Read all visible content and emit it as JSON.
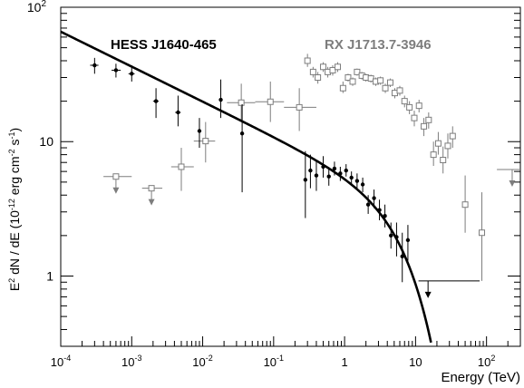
{
  "chart_data": {
    "type": "scatter",
    "xscale": "log",
    "yscale": "log",
    "xlim": [
      0.0001,
      300
    ],
    "ylim": [
      0.3,
      100
    ],
    "xlabel": "Energy (TeV)",
    "ylabel": {
      "base": "E",
      "base_sup": "2",
      "rest": " dN / dE (10",
      "exp_sup": "-12",
      "unit_a": " erg cm",
      "unit_a_sup": "-2",
      "unit_b": " s",
      "unit_b_sup": "-1",
      "close": ")"
    },
    "x_tick_labels": [
      {
        "value": 0.0001,
        "base": "10",
        "exp": "-4"
      },
      {
        "value": 0.001,
        "base": "10",
        "exp": "-3"
      },
      {
        "value": 0.01,
        "base": "10",
        "exp": "-2"
      },
      {
        "value": 0.1,
        "base": "10",
        "exp": "-1"
      },
      {
        "value": 1,
        "base": "1",
        "exp": ""
      },
      {
        "value": 10,
        "base": "10",
        "exp": ""
      },
      {
        "value": 100,
        "base": "10",
        "exp": "2"
      }
    ],
    "y_tick_labels": [
      {
        "value": 1,
        "base": "1",
        "exp": ""
      },
      {
        "value": 10,
        "base": "10",
        "exp": ""
      },
      {
        "value": 100,
        "base": "10",
        "exp": "2"
      }
    ],
    "colors": {
      "hess": "#000000",
      "rx": "#7d7d7d"
    },
    "series": [
      {
        "name": "HESS J1640-465",
        "color": "#000000",
        "marker": "dot",
        "points": [
          {
            "x": 0.0003,
            "y": 37,
            "xerr": [
              0.00026,
              0.00034
            ],
            "yerr": [
              32,
              42
            ]
          },
          {
            "x": 0.0006,
            "y": 34,
            "xerr": [
              0.00052,
              0.0007
            ],
            "yerr": [
              30,
              38
            ]
          },
          {
            "x": 0.001,
            "y": 32,
            "xerr": [
              0.0009,
              0.0011
            ],
            "yerr": [
              28,
              37
            ]
          },
          {
            "x": 0.0022,
            "y": 20,
            "xerr": [
              0.002,
              0.0024
            ],
            "yerr": [
              15,
              25
            ]
          },
          {
            "x": 0.0045,
            "y": 16.5,
            "xerr": [
              0.0041,
              0.0049
            ],
            "yerr": [
              13,
              22
            ]
          },
          {
            "x": 0.009,
            "y": 12,
            "xerr": [
              0.0085,
              0.0095
            ],
            "yerr": [
              9,
              15
            ]
          },
          {
            "x": 0.018,
            "y": 20.5,
            "xerr": [
              0.017,
              0.019
            ],
            "yerr": [
              15,
              29
            ]
          },
          {
            "x": 0.036,
            "y": 11.5,
            "xerr": [
              0.034,
              0.038
            ],
            "yerr": [
              4.2,
              19
            ]
          },
          {
            "x": 0.28,
            "y": 5.2,
            "yerr": [
              2.7,
              8.5
            ]
          },
          {
            "x": 0.33,
            "y": 6.1,
            "yerr": [
              4.5,
              8
            ]
          },
          {
            "x": 0.4,
            "y": 5.6,
            "yerr": [
              4.3,
              7.2
            ]
          },
          {
            "x": 0.5,
            "y": 6.5,
            "yerr": [
              5.4,
              7.8
            ]
          },
          {
            "x": 0.6,
            "y": 5.5,
            "yerr": [
              4.7,
              6.4
            ]
          },
          {
            "x": 0.72,
            "y": 6.3,
            "yerr": [
              5.6,
              7.1
            ]
          },
          {
            "x": 0.87,
            "y": 5.8,
            "yerr": [
              5.1,
              6.5
            ]
          },
          {
            "x": 1.05,
            "y": 6.1,
            "yerr": [
              5.5,
              6.8
            ]
          },
          {
            "x": 1.25,
            "y": 5.4,
            "yerr": [
              4.8,
              6
            ]
          },
          {
            "x": 1.5,
            "y": 5.1,
            "yerr": [
              4.5,
              5.8
            ]
          },
          {
            "x": 1.8,
            "y": 4.8,
            "yerr": [
              4.2,
              5.4
            ]
          },
          {
            "x": 2.15,
            "y": 3.4,
            "yerr": [
              2.9,
              4
            ]
          },
          {
            "x": 2.6,
            "y": 3.8,
            "yerr": [
              3.2,
              4.4
            ]
          },
          {
            "x": 3.1,
            "y": 3.1,
            "yerr": [
              2.6,
              3.7
            ]
          },
          {
            "x": 3.7,
            "y": 2.8,
            "yerr": [
              2.3,
              3.4
            ]
          },
          {
            "x": 4.5,
            "y": 2.0,
            "yerr": [
              1.6,
              2.5
            ]
          },
          {
            "x": 5.4,
            "y": 1.95,
            "yerr": [
              1.4,
              2.5
            ]
          },
          {
            "x": 6.5,
            "y": 1.4,
            "yerr": [
              0.9,
              2.1
            ]
          },
          {
            "x": 7.8,
            "y": 1.85,
            "yerr": [
              1.3,
              2.4
            ]
          }
        ],
        "upper_limits": [
          {
            "x": 15,
            "y": 0.92,
            "xerr": [
              11,
              80
            ]
          }
        ]
      },
      {
        "name": "RX J1713.7-3946",
        "color": "#7d7d7d",
        "marker": "open-square",
        "points": [
          {
            "x": 0.005,
            "y": 6.5,
            "xerr": [
              0.0036,
              0.0075
            ],
            "yerr": [
              4.3,
              9
            ]
          },
          {
            "x": 0.011,
            "y": 10.1,
            "xerr": [
              0.0075,
              0.015
            ],
            "yerr": [
              7,
              14
            ]
          },
          {
            "x": 0.035,
            "y": 19.5,
            "xerr": [
              0.022,
              0.055
            ],
            "yerr": [
              14,
              27
            ]
          },
          {
            "x": 0.09,
            "y": 19.8,
            "xerr": [
              0.055,
              0.14
            ],
            "yerr": [
              14,
              28
            ]
          },
          {
            "x": 0.23,
            "y": 18,
            "xerr": [
              0.14,
              0.4
            ],
            "yerr": [
              12,
              25
            ]
          },
          {
            "x": 0.3,
            "y": 40,
            "yerr": [
              36,
              45
            ]
          },
          {
            "x": 0.36,
            "y": 33,
            "yerr": [
              30,
              36
            ]
          },
          {
            "x": 0.42,
            "y": 30,
            "yerr": [
              27,
              33
            ]
          },
          {
            "x": 0.5,
            "y": 36,
            "yerr": [
              33,
              39
            ]
          },
          {
            "x": 0.58,
            "y": 33,
            "yerr": [
              30,
              36
            ]
          },
          {
            "x": 0.68,
            "y": 34,
            "yerr": [
              31,
              37
            ]
          },
          {
            "x": 0.8,
            "y": 36,
            "yerr": [
              33,
              39
            ]
          },
          {
            "x": 0.95,
            "y": 25,
            "yerr": [
              23,
              28
            ]
          },
          {
            "x": 1.12,
            "y": 30,
            "yerr": [
              28,
              32
            ]
          },
          {
            "x": 1.3,
            "y": 28,
            "yerr": [
              26,
              30
            ]
          },
          {
            "x": 1.5,
            "y": 33,
            "yerr": [
              31,
              35
            ]
          },
          {
            "x": 1.75,
            "y": 31,
            "yerr": [
              29,
              33
            ]
          },
          {
            "x": 2.0,
            "y": 30,
            "yerr": [
              28,
              32
            ]
          },
          {
            "x": 2.35,
            "y": 29.5,
            "yerr": [
              27.5,
              31.5
            ]
          },
          {
            "x": 2.75,
            "y": 28,
            "yerr": [
              26,
              30
            ]
          },
          {
            "x": 3.2,
            "y": 28.5,
            "yerr": [
              26.5,
              30.5
            ]
          },
          {
            "x": 3.75,
            "y": 25,
            "yerr": [
              23,
              27
            ]
          },
          {
            "x": 4.4,
            "y": 27.5,
            "yerr": [
              25.5,
              29.5
            ]
          },
          {
            "x": 5.1,
            "y": 23,
            "yerr": [
              21,
              25
            ]
          },
          {
            "x": 6.0,
            "y": 24,
            "yerr": [
              22,
              26
            ]
          },
          {
            "x": 7.0,
            "y": 20,
            "yerr": [
              18,
              22
            ]
          },
          {
            "x": 8.2,
            "y": 18,
            "yerr": [
              16,
              20
            ]
          },
          {
            "x": 9.6,
            "y": 15,
            "yerr": [
              13,
              17
            ]
          },
          {
            "x": 11.2,
            "y": 18.5,
            "yerr": [
              16.5,
              20.5
            ]
          },
          {
            "x": 13.1,
            "y": 13,
            "yerr": [
              11,
              15
            ]
          },
          {
            "x": 15.3,
            "y": 14.5,
            "yerr": [
              12.5,
              16.5
            ]
          },
          {
            "x": 17.9,
            "y": 8,
            "yerr": [
              6.6,
              10
            ]
          },
          {
            "x": 20.9,
            "y": 9.7,
            "yerr": [
              8,
              11.8
            ]
          },
          {
            "x": 24.4,
            "y": 7.3,
            "yerr": [
              5.8,
              9.2
            ]
          },
          {
            "x": 28.5,
            "y": 9.3,
            "yerr": [
              7.5,
              11.5
            ]
          },
          {
            "x": 33.3,
            "y": 11,
            "yerr": [
              9,
              13
            ]
          },
          {
            "x": 50,
            "y": 3.4,
            "yerr": [
              2.1,
              5.6
            ]
          },
          {
            "x": 86,
            "y": 2.1,
            "yerr": [
              0.92,
              4.2
            ]
          }
        ],
        "upper_limits": [
          {
            "x": 0.0006,
            "y": 5.5,
            "xerr": [
              0.0004,
              0.001
            ]
          },
          {
            "x": 0.0019,
            "y": 4.5,
            "xerr": [
              0.0014,
              0.0027
            ]
          },
          {
            "x": 230,
            "y": 6.2,
            "xerr": [
              140,
              300
            ]
          }
        ]
      }
    ],
    "model_curve": {
      "form": "power law with exponential cutoff",
      "normalization": 6.0,
      "index": 2.26,
      "cutoff_tev": 7.5,
      "x_range": [
        0.0001,
        25
      ]
    }
  }
}
